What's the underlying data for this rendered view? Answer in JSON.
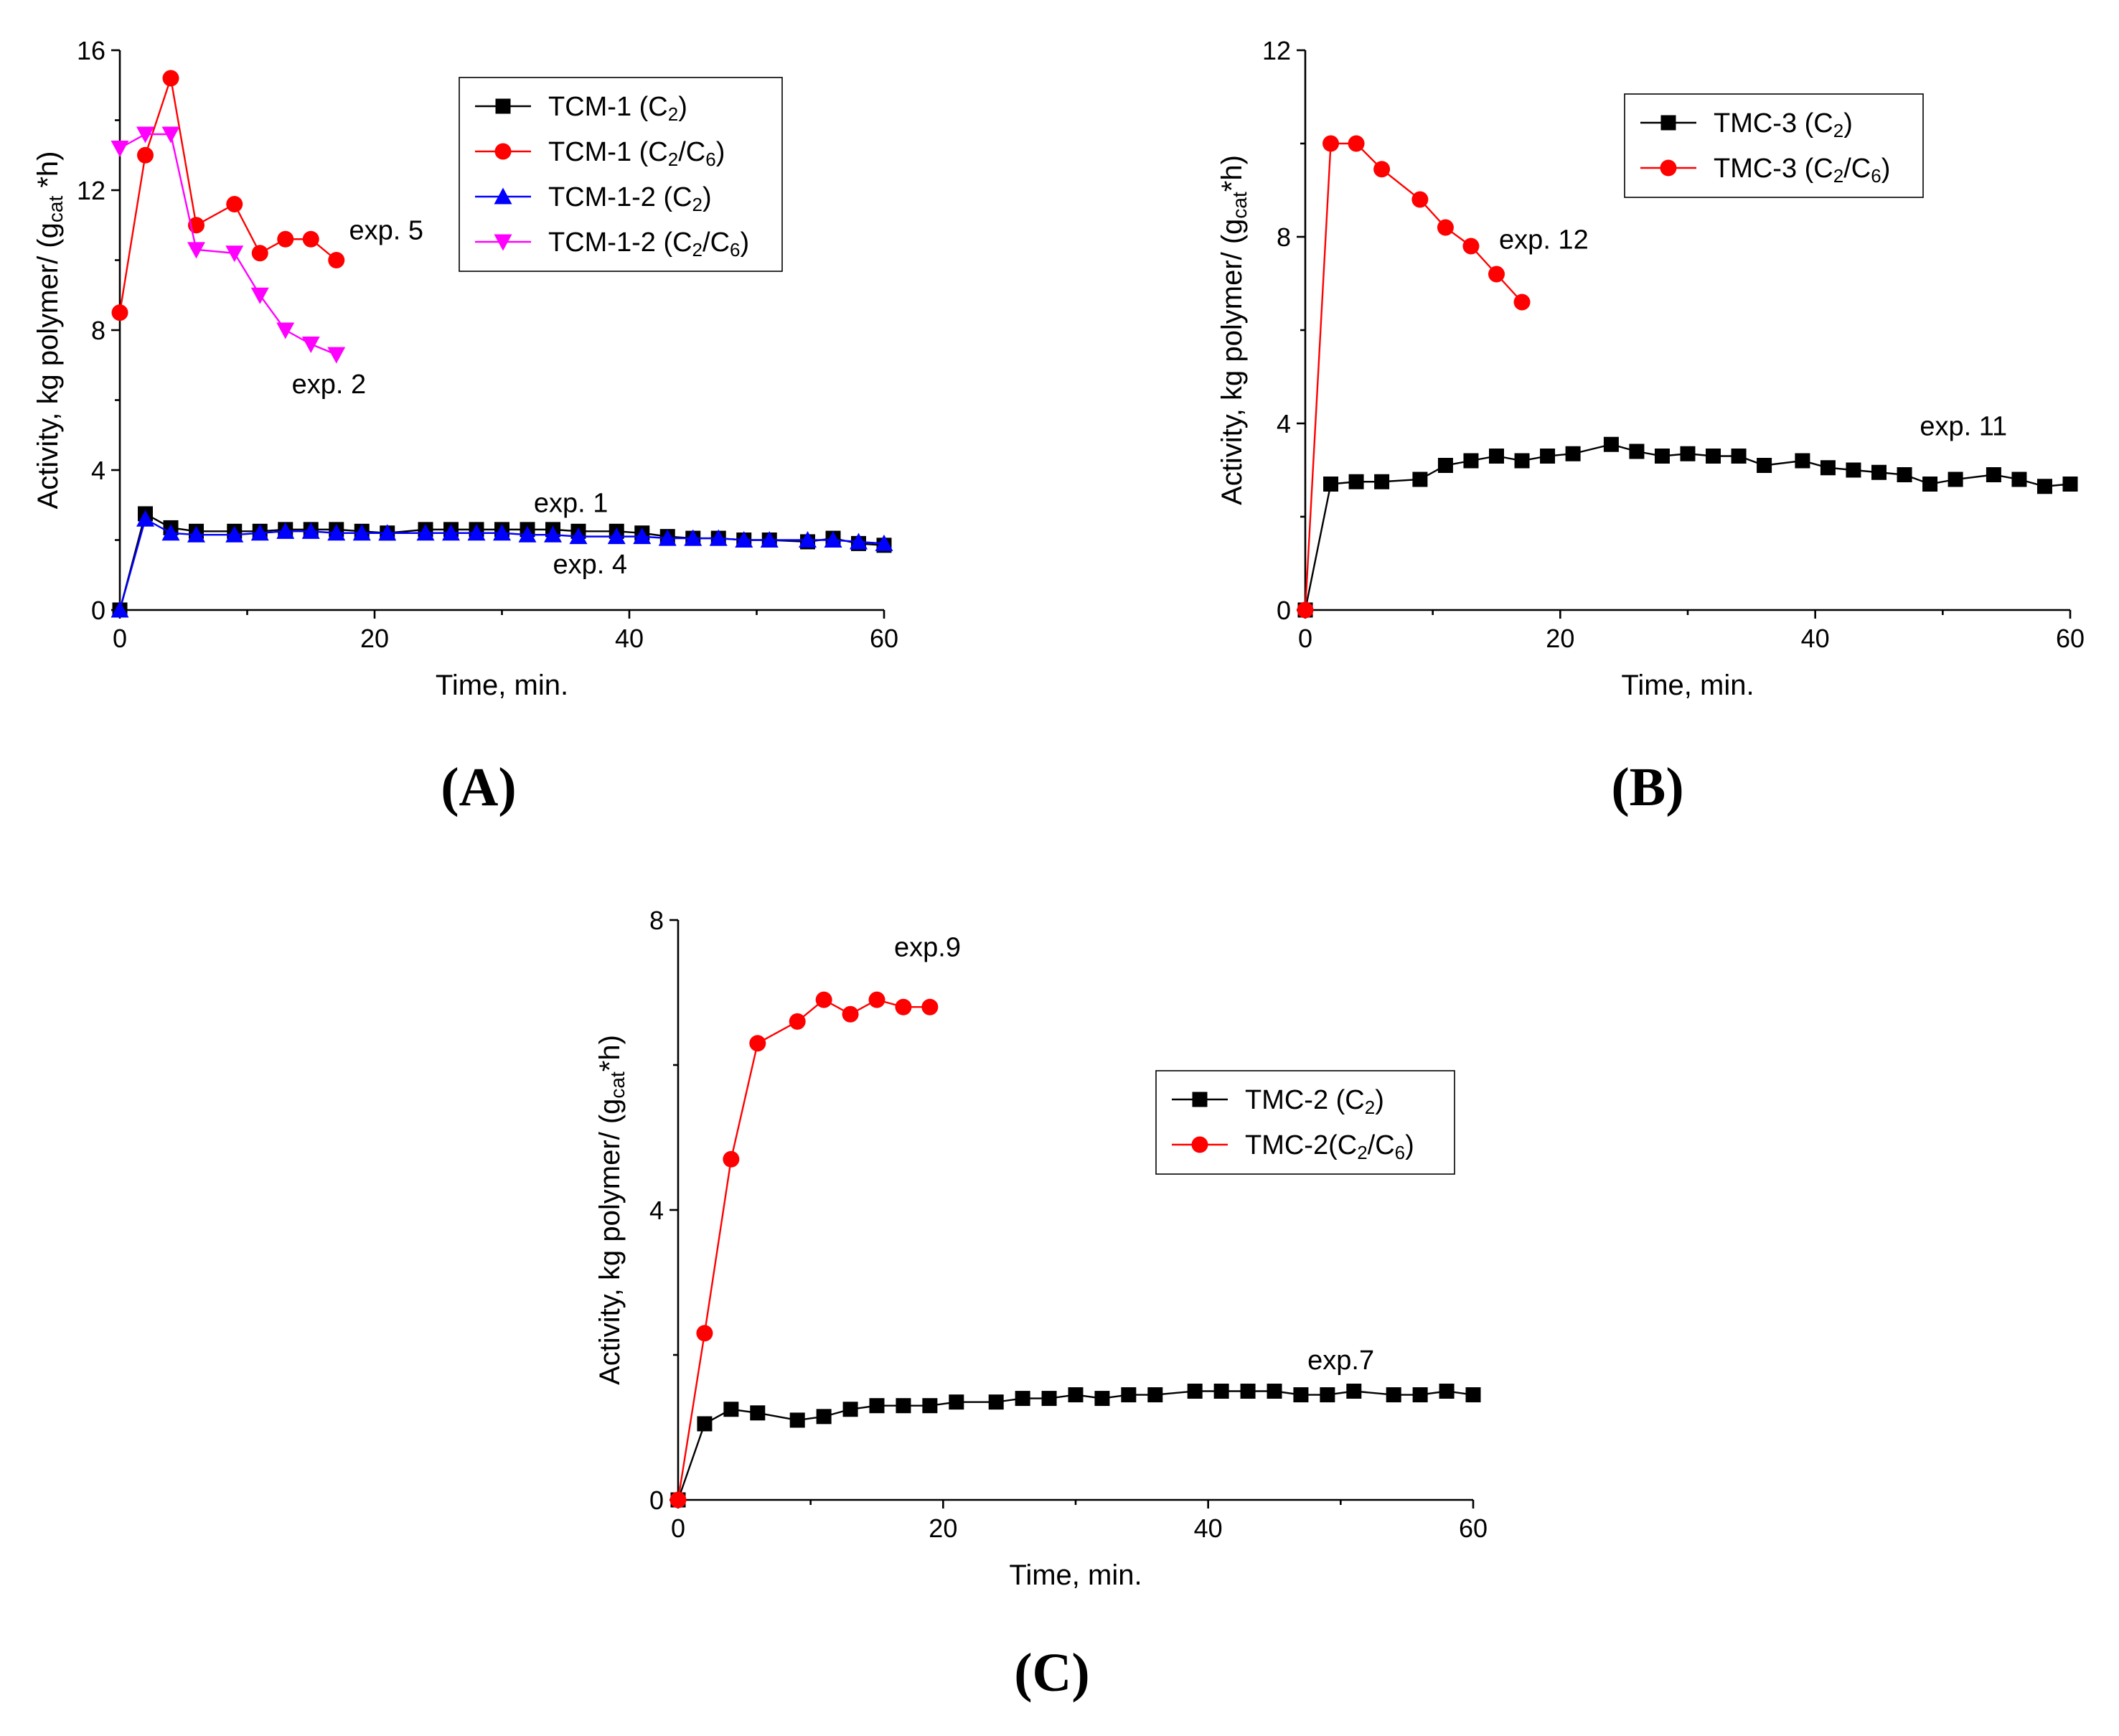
{
  "chart_data": [
    {
      "type": "line",
      "panel": "A",
      "panel_label": "(A)",
      "xlabel": "Time, min.",
      "ylabel": {
        "pre": "Activity, kg polymer/ (g",
        "sub": "cat",
        "post": " *h)"
      },
      "xlim": [
        0,
        60
      ],
      "ylim": [
        0,
        16
      ],
      "xticks": [
        0,
        20,
        40,
        60
      ],
      "yticks": [
        0,
        4,
        8,
        12,
        16
      ],
      "legend_position": "top-right",
      "series": [
        {
          "name": "TCM-1 (C2)",
          "label_parts": [
            {
              "t": "TCM-1 (C"
            },
            {
              "sub": "2"
            },
            {
              "t": ")"
            }
          ],
          "color": "#000000",
          "marker": "square",
          "x": [
            0,
            2,
            4,
            6,
            9,
            11,
            13,
            15,
            17,
            19,
            21,
            24,
            26,
            28,
            30,
            32,
            34,
            36,
            39,
            41,
            43,
            45,
            47,
            49,
            51,
            54,
            56,
            58,
            60
          ],
          "y": [
            0,
            2.75,
            2.35,
            2.25,
            2.25,
            2.25,
            2.3,
            2.3,
            2.3,
            2.25,
            2.2,
            2.3,
            2.3,
            2.3,
            2.3,
            2.3,
            2.3,
            2.25,
            2.25,
            2.2,
            2.1,
            2.05,
            2.05,
            2.0,
            2.0,
            1.95,
            2.05,
            1.9,
            1.85
          ]
        },
        {
          "name": "TCM-1 (C2/C6)",
          "label_parts": [
            {
              "t": "TCM-1 (C"
            },
            {
              "sub": "2"
            },
            {
              "t": "/C"
            },
            {
              "sub": "6"
            },
            {
              "t": ")"
            }
          ],
          "color": "#ff0000",
          "marker": "circle",
          "x": [
            0,
            2,
            4,
            6,
            9,
            11,
            13,
            15,
            17
          ],
          "y": [
            8.5,
            13.0,
            15.2,
            11.0,
            11.6,
            10.2,
            10.6,
            10.6,
            10.0
          ]
        },
        {
          "name": "TCM-1-2 (C2)",
          "label_parts": [
            {
              "t": "TCM-1-2 (C"
            },
            {
              "sub": "2"
            },
            {
              "t": ")"
            }
          ],
          "color": "#0000ff",
          "marker": "triangle-up",
          "x": [
            0,
            2,
            4,
            6,
            9,
            11,
            13,
            15,
            17,
            19,
            21,
            24,
            26,
            28,
            30,
            32,
            34,
            36,
            39,
            41,
            43,
            45,
            47,
            49,
            51,
            54,
            56,
            58,
            60
          ],
          "y": [
            0,
            2.6,
            2.2,
            2.15,
            2.15,
            2.2,
            2.25,
            2.25,
            2.2,
            2.2,
            2.2,
            2.2,
            2.2,
            2.2,
            2.2,
            2.15,
            2.15,
            2.1,
            2.1,
            2.1,
            2.05,
            2.05,
            2.05,
            2.0,
            2.0,
            2.0,
            2.0,
            1.95,
            1.9
          ]
        },
        {
          "name": "TCM-1-2 (C2/C6)",
          "label_parts": [
            {
              "t": "TCM-1-2 (C"
            },
            {
              "sub": "2"
            },
            {
              "t": "/C"
            },
            {
              "sub": "6"
            },
            {
              "t": ")"
            }
          ],
          "color": "#ff00ff",
          "marker": "triangle-down",
          "x": [
            0,
            2,
            4,
            6,
            9,
            11,
            13,
            15,
            17
          ],
          "y": [
            13.2,
            13.6,
            13.6,
            10.3,
            10.2,
            9.0,
            8.0,
            7.6,
            7.3
          ]
        }
      ],
      "annotations": [
        {
          "text": "exp. 5",
          "x": 18,
          "y": 10.6,
          "anchor": "start"
        },
        {
          "text": "exp. 2",
          "x": 13.5,
          "y": 6.2,
          "anchor": "start"
        },
        {
          "text": "exp. 1",
          "x": 32.5,
          "y": 2.8,
          "anchor": "start"
        },
        {
          "text": "exp. 4",
          "x": 34,
          "y": 1.05,
          "anchor": "start"
        }
      ]
    },
    {
      "type": "line",
      "panel": "B",
      "panel_label": "(B)",
      "xlabel": "Time, min.",
      "ylabel": {
        "pre": "Activity, kg polymer/ (g",
        "sub": "cat",
        "post": "*h)"
      },
      "xlim": [
        0,
        60
      ],
      "ylim": [
        0,
        12
      ],
      "xticks": [
        0,
        20,
        40,
        60
      ],
      "yticks": [
        0,
        4,
        8,
        12
      ],
      "legend_position": "top-right",
      "series": [
        {
          "name": "TMC-3 (C2)",
          "label_parts": [
            {
              "t": "TMC-3 (C"
            },
            {
              "sub": "2"
            },
            {
              "t": ")"
            }
          ],
          "color": "#000000",
          "marker": "square",
          "x": [
            0,
            2,
            4,
            6,
            9,
            11,
            13,
            15,
            17,
            19,
            21,
            24,
            26,
            28,
            30,
            32,
            34,
            36,
            39,
            41,
            43,
            45,
            47,
            49,
            51,
            54,
            56,
            58,
            60
          ],
          "y": [
            0,
            2.7,
            2.75,
            2.75,
            2.8,
            3.1,
            3.2,
            3.3,
            3.2,
            3.3,
            3.35,
            3.55,
            3.4,
            3.3,
            3.35,
            3.3,
            3.3,
            3.1,
            3.2,
            3.05,
            3.0,
            2.95,
            2.9,
            2.7,
            2.8,
            2.9,
            2.8,
            2.65,
            2.7
          ]
        },
        {
          "name": "TMC-3 (C2/C6)",
          "label_parts": [
            {
              "t": "TMC-3 (C"
            },
            {
              "sub": "2"
            },
            {
              "t": "/C"
            },
            {
              "sub": "6"
            },
            {
              "t": ")"
            }
          ],
          "color": "#ff0000",
          "marker": "circle",
          "x": [
            0,
            2,
            4,
            6,
            9,
            11,
            13,
            15,
            17
          ],
          "y": [
            0,
            10.0,
            10.0,
            9.45,
            8.8,
            8.2,
            7.8,
            7.2,
            6.6
          ]
        }
      ],
      "annotations": [
        {
          "text": "exp. 12",
          "x": 15.2,
          "y": 7.75,
          "anchor": "start"
        },
        {
          "text": "exp. 11",
          "x": 48.2,
          "y": 3.75,
          "anchor": "start"
        }
      ]
    },
    {
      "type": "line",
      "panel": "C",
      "panel_label": "(C)",
      "xlabel": "Time, min.",
      "ylabel": {
        "pre": "Activity, kg polymer/ (g",
        "sub": "cat",
        "post": "*h)"
      },
      "xlim": [
        0,
        60
      ],
      "ylim": [
        0,
        8
      ],
      "xticks": [
        0,
        20,
        40,
        60
      ],
      "yticks": [
        0,
        4,
        8
      ],
      "legend_position": "center-right",
      "series": [
        {
          "name": "TMC-2 (C2)",
          "label_parts": [
            {
              "t": "TMC-2 (C"
            },
            {
              "sub": "2"
            },
            {
              "t": ")"
            }
          ],
          "color": "#000000",
          "marker": "square",
          "x": [
            0,
            2,
            4,
            6,
            9,
            11,
            13,
            15,
            17,
            19,
            21,
            24,
            26,
            28,
            30,
            32,
            34,
            36,
            39,
            41,
            43,
            45,
            47,
            49,
            51,
            54,
            56,
            58,
            60
          ],
          "y": [
            0,
            1.05,
            1.25,
            1.2,
            1.1,
            1.15,
            1.25,
            1.3,
            1.3,
            1.3,
            1.35,
            1.35,
            1.4,
            1.4,
            1.45,
            1.4,
            1.45,
            1.45,
            1.5,
            1.5,
            1.5,
            1.5,
            1.45,
            1.45,
            1.5,
            1.45,
            1.45,
            1.5,
            1.45
          ]
        },
        {
          "name": "TMC-2(C2/C6)",
          "label_parts": [
            {
              "t": "TMC-2(C"
            },
            {
              "sub": "2"
            },
            {
              "t": "/C"
            },
            {
              "sub": "6"
            },
            {
              "t": ")"
            }
          ],
          "color": "#ff0000",
          "marker": "circle",
          "x": [
            0,
            2,
            4,
            6,
            9,
            11,
            13,
            15,
            17,
            19
          ],
          "y": [
            0,
            2.3,
            4.7,
            6.3,
            6.6,
            6.9,
            6.7,
            6.9,
            6.8,
            6.8
          ]
        }
      ],
      "annotations": [
        {
          "text": "exp.9",
          "x": 16.3,
          "y": 7.5,
          "anchor": "start"
        },
        {
          "text": "exp.7",
          "x": 47.5,
          "y": 1.8,
          "anchor": "start"
        }
      ]
    }
  ]
}
